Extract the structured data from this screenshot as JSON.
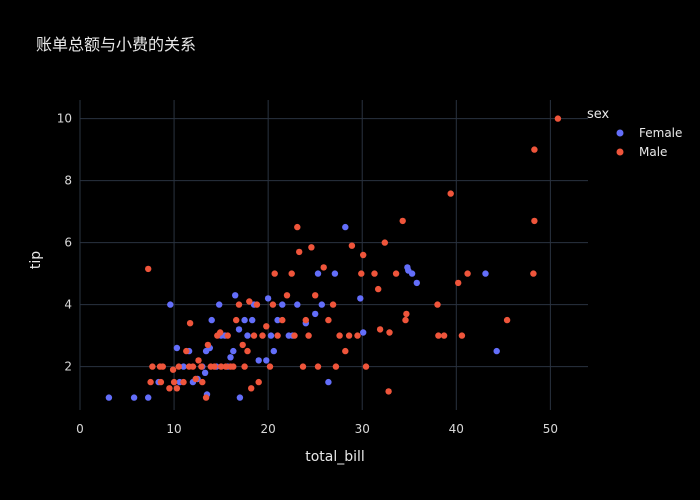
{
  "chart_data": {
    "type": "scatter",
    "title": "账单总额与小费的关系",
    "xlabel": "total_bill",
    "ylabel": "tip",
    "xlim": [
      0,
      54
    ],
    "ylim": [
      0.6,
      10.6
    ],
    "x_ticks": [
      0,
      10,
      20,
      30,
      40,
      50
    ],
    "y_ticks": [
      2,
      4,
      6,
      8,
      10
    ],
    "grid": true,
    "legend": {
      "title": "sex",
      "placement": "top-right"
    },
    "colors": {
      "Female": "#636efa",
      "Male": "#ef553b",
      "background": "#000000",
      "grid": "#2a3340"
    },
    "series": [
      {
        "name": "Female",
        "points": [
          [
            3.07,
            1.0
          ],
          [
            5.75,
            1.0
          ],
          [
            7.25,
            1.0
          ],
          [
            8.35,
            1.5
          ],
          [
            9.6,
            4.0
          ],
          [
            10.3,
            2.6
          ],
          [
            10.6,
            1.5
          ],
          [
            11.0,
            2.0
          ],
          [
            11.6,
            2.5
          ],
          [
            12.0,
            1.5
          ],
          [
            12.5,
            1.6
          ],
          [
            13.0,
            2.0
          ],
          [
            13.3,
            1.8
          ],
          [
            13.4,
            2.5
          ],
          [
            13.5,
            1.1
          ],
          [
            13.8,
            2.6
          ],
          [
            14.0,
            3.5
          ],
          [
            14.5,
            2.0
          ],
          [
            14.8,
            4.0
          ],
          [
            15.0,
            3.0
          ],
          [
            15.4,
            3.0
          ],
          [
            15.7,
            2.0
          ],
          [
            16.0,
            2.3
          ],
          [
            16.3,
            2.5
          ],
          [
            16.5,
            4.3
          ],
          [
            16.9,
            3.2
          ],
          [
            17.0,
            1.0
          ],
          [
            17.5,
            3.5
          ],
          [
            17.8,
            3.0
          ],
          [
            18.3,
            3.5
          ],
          [
            18.5,
            4.0
          ],
          [
            19.0,
            2.2
          ],
          [
            19.8,
            2.2
          ],
          [
            20.0,
            4.2
          ],
          [
            20.3,
            3.0
          ],
          [
            20.6,
            2.5
          ],
          [
            21.0,
            3.5
          ],
          [
            21.5,
            4.0
          ],
          [
            22.2,
            3.0
          ],
          [
            22.6,
            3.0
          ],
          [
            23.1,
            4.0
          ],
          [
            24.0,
            3.4
          ],
          [
            25.0,
            3.7
          ],
          [
            25.3,
            5.0
          ],
          [
            25.7,
            4.0
          ],
          [
            26.4,
            1.5
          ],
          [
            27.1,
            5.0
          ],
          [
            28.2,
            6.5
          ],
          [
            29.8,
            4.2
          ],
          [
            30.1,
            3.1
          ],
          [
            34.8,
            5.2
          ],
          [
            34.9,
            5.1
          ],
          [
            35.3,
            5.0
          ],
          [
            35.8,
            4.7
          ],
          [
            43.1,
            5.0
          ],
          [
            44.3,
            2.5
          ]
        ]
      },
      {
        "name": "Male",
        "points": [
          [
            7.25,
            5.15
          ],
          [
            7.5,
            1.5
          ],
          [
            7.7,
            2.0
          ],
          [
            8.5,
            2.0
          ],
          [
            8.6,
            1.5
          ],
          [
            8.8,
            2.0
          ],
          [
            9.5,
            1.3
          ],
          [
            9.9,
            1.9
          ],
          [
            10.0,
            1.5
          ],
          [
            10.3,
            1.3
          ],
          [
            10.5,
            2.0
          ],
          [
            11.0,
            1.5
          ],
          [
            11.3,
            2.5
          ],
          [
            11.6,
            2.0
          ],
          [
            11.7,
            3.4
          ],
          [
            12.0,
            2.0
          ],
          [
            12.3,
            1.6
          ],
          [
            12.6,
            2.2
          ],
          [
            12.9,
            2.0
          ],
          [
            13.0,
            1.5
          ],
          [
            13.4,
            1.0
          ],
          [
            13.6,
            2.7
          ],
          [
            13.9,
            2.0
          ],
          [
            14.3,
            2.0
          ],
          [
            14.6,
            3.0
          ],
          [
            14.9,
            3.1
          ],
          [
            15.0,
            2.0
          ],
          [
            15.5,
            2.0
          ],
          [
            15.7,
            3.0
          ],
          [
            16.0,
            2.0
          ],
          [
            16.3,
            2.0
          ],
          [
            16.6,
            3.5
          ],
          [
            16.9,
            4.0
          ],
          [
            17.3,
            2.7
          ],
          [
            17.5,
            2.0
          ],
          [
            17.8,
            2.5
          ],
          [
            18.0,
            4.1
          ],
          [
            18.2,
            1.3
          ],
          [
            18.5,
            3.0
          ],
          [
            18.8,
            4.0
          ],
          [
            19.0,
            1.5
          ],
          [
            19.4,
            3.0
          ],
          [
            19.8,
            3.3
          ],
          [
            20.2,
            2.0
          ],
          [
            20.5,
            4.0
          ],
          [
            20.7,
            5.0
          ],
          [
            21.0,
            3.0
          ],
          [
            21.5,
            3.5
          ],
          [
            22.0,
            4.3
          ],
          [
            22.5,
            5.0
          ],
          [
            22.8,
            3.0
          ],
          [
            23.1,
            6.5
          ],
          [
            23.3,
            5.7
          ],
          [
            23.7,
            2.0
          ],
          [
            24.0,
            3.5
          ],
          [
            24.3,
            3.0
          ],
          [
            24.6,
            5.85
          ],
          [
            25.0,
            4.3
          ],
          [
            25.3,
            2.0
          ],
          [
            25.9,
            5.2
          ],
          [
            26.4,
            3.5
          ],
          [
            26.9,
            4.0
          ],
          [
            27.2,
            2.0
          ],
          [
            27.6,
            3.0
          ],
          [
            28.2,
            2.5
          ],
          [
            28.6,
            3.0
          ],
          [
            28.9,
            5.9
          ],
          [
            29.5,
            3.0
          ],
          [
            29.9,
            5.0
          ],
          [
            30.1,
            5.6
          ],
          [
            30.4,
            2.0
          ],
          [
            31.3,
            5.0
          ],
          [
            31.7,
            4.5
          ],
          [
            31.9,
            3.2
          ],
          [
            32.4,
            6.0
          ],
          [
            32.8,
            1.2
          ],
          [
            32.9,
            3.1
          ],
          [
            33.6,
            5.0
          ],
          [
            34.3,
            6.7
          ],
          [
            34.6,
            3.5
          ],
          [
            34.7,
            3.7
          ],
          [
            38.0,
            4.0
          ],
          [
            38.1,
            3.0
          ],
          [
            38.7,
            3.0
          ],
          [
            39.4,
            7.58
          ],
          [
            40.2,
            4.7
          ],
          [
            40.6,
            3.0
          ],
          [
            41.2,
            5.0
          ],
          [
            45.4,
            3.5
          ],
          [
            48.2,
            5.0
          ],
          [
            48.3,
            6.7
          ],
          [
            48.3,
            9.0
          ],
          [
            50.8,
            10.0
          ]
        ]
      }
    ]
  }
}
